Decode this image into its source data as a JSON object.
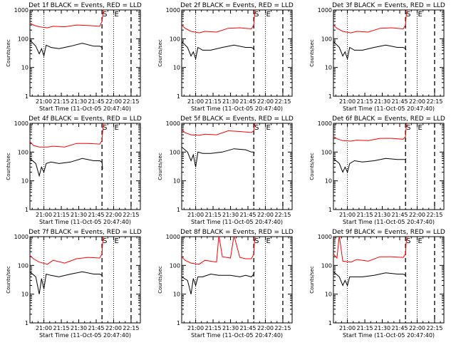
{
  "figure": {
    "xlabel": "Start Time (11-Oct-05 20:47:40)",
    "ylabel": "Counts/sec",
    "x_ticks": [
      "21:00",
      "21:15",
      "21:30",
      "21:45",
      "22:00",
      "22:15"
    ],
    "y_ticks": [
      "1",
      "10",
      "100",
      "1000"
    ],
    "markers": {
      "start": "S",
      "end": "E"
    }
  },
  "chart_data": [
    {
      "type": "line",
      "title": "Det 1f BLACK = Events, RED = LLD",
      "xlabel": "Start Time (11-Oct-05 20:47:40)",
      "ylabel": "Counts/sec",
      "yscale": "log",
      "ylim": [
        1,
        1000
      ],
      "xlim": [
        0,
        95
      ],
      "x_tick_labels": [
        "21:00",
        "21:15",
        "21:30",
        "21:45",
        "22:00",
        "22:15"
      ],
      "series": [
        {
          "name": "BLACK = Events",
          "color": "#000000",
          "x": [
            0,
            5,
            8,
            10,
            12,
            14,
            18,
            25,
            35,
            45,
            55,
            60,
            62,
            62.5
          ],
          "y": [
            90,
            55,
            30,
            45,
            25,
            60,
            50,
            45,
            55,
            70,
            55,
            55,
            50,
            45
          ]
        },
        {
          "name": "RED = LLD",
          "color": "#ff0000",
          "x": [
            0,
            3,
            8,
            15,
            20,
            30,
            40,
            50,
            60,
            62,
            62.5,
            63.5
          ],
          "y": [
            350,
            300,
            260,
            240,
            270,
            260,
            300,
            290,
            270,
            400,
            600,
            1100
          ]
        }
      ],
      "vlines": {
        "dotted": [
          12,
          72
        ],
        "dashed": [
          62,
          87
        ],
        "solid": [
          95
        ]
      },
      "markers": [
        "S",
        "E"
      ]
    },
    {
      "type": "line",
      "title": "Det 2f BLACK = Events, RED = LLD",
      "xlabel": "Start Time (11-Oct-05 20:47:40)",
      "ylabel": "Counts/sec",
      "yscale": "log",
      "ylim": [
        1,
        1000
      ],
      "xlim": [
        0,
        95
      ],
      "x_tick_labels": [
        "21:00",
        "21:15",
        "21:30",
        "21:45",
        "22:00",
        "22:15"
      ],
      "series": [
        {
          "name": "BLACK = Events",
          "color": "#000000",
          "x": [
            0,
            5,
            8,
            10,
            12,
            14,
            18,
            25,
            35,
            45,
            55,
            60,
            62,
            62.5
          ],
          "y": [
            80,
            50,
            25,
            35,
            20,
            50,
            40,
            40,
            50,
            60,
            50,
            50,
            45,
            40
          ]
        },
        {
          "name": "RED = LLD",
          "color": "#ff0000",
          "x": [
            0,
            3,
            8,
            15,
            20,
            30,
            40,
            50,
            60,
            62,
            62.5,
            63.5
          ],
          "y": [
            300,
            230,
            180,
            160,
            180,
            170,
            230,
            240,
            220,
            300,
            600,
            1100
          ]
        }
      ],
      "vlines": {
        "dotted": [
          12,
          72
        ],
        "dashed": [
          62,
          87
        ],
        "solid": [
          95
        ]
      },
      "markers": [
        "S",
        "E"
      ]
    },
    {
      "type": "line",
      "title": "Det 3f BLACK = Events, RED = LLD",
      "xlabel": "Start Time (11-Oct-05 20:47:40)",
      "ylabel": "Counts/sec",
      "yscale": "log",
      "ylim": [
        1,
        1000
      ],
      "xlim": [
        0,
        95
      ],
      "x_tick_labels": [
        "21:00",
        "21:15",
        "21:30",
        "21:45",
        "22:00",
        "22:15"
      ],
      "series": [
        {
          "name": "BLACK = Events",
          "color": "#000000",
          "x": [
            0,
            5,
            8,
            10,
            12,
            14,
            18,
            25,
            35,
            45,
            55,
            60,
            62,
            62.5
          ],
          "y": [
            80,
            50,
            25,
            35,
            20,
            50,
            40,
            40,
            50,
            60,
            50,
            50,
            45,
            40
          ]
        },
        {
          "name": "RED = LLD",
          "color": "#ff0000",
          "x": [
            0,
            3,
            8,
            15,
            20,
            30,
            40,
            50,
            60,
            62,
            62.5,
            63.5
          ],
          "y": [
            300,
            230,
            180,
            160,
            180,
            170,
            230,
            240,
            220,
            300,
            600,
            1100
          ]
        }
      ],
      "vlines": {
        "dotted": [
          12,
          72
        ],
        "dashed": [
          62,
          87
        ],
        "solid": [
          95
        ]
      },
      "markers": [
        "S",
        "E"
      ]
    },
    {
      "type": "line",
      "title": "Det 4f BLACK = Events, RED = LLD",
      "xlabel": "Start Time (11-Oct-05 20:47:40)",
      "ylabel": "Counts/sec",
      "yscale": "log",
      "ylim": [
        1,
        1000
      ],
      "xlim": [
        0,
        95
      ],
      "x_tick_labels": [
        "21:00",
        "21:15",
        "21:30",
        "21:45",
        "22:00",
        "22:15"
      ],
      "series": [
        {
          "name": "BLACK = Events",
          "color": "#000000",
          "x": [
            0,
            5,
            8,
            10,
            12,
            14,
            18,
            25,
            35,
            45,
            55,
            60,
            62,
            62.5
          ],
          "y": [
            60,
            40,
            15,
            30,
            20,
            40,
            45,
            40,
            45,
            60,
            50,
            50,
            45,
            25
          ]
        },
        {
          "name": "RED = LLD",
          "color": "#ff0000",
          "x": [
            0,
            3,
            8,
            15,
            20,
            30,
            40,
            50,
            60,
            62,
            62.5,
            63.5
          ],
          "y": [
            230,
            170,
            150,
            150,
            160,
            150,
            200,
            200,
            190,
            250,
            500,
            1100
          ]
        }
      ],
      "vlines": {
        "dotted": [
          12,
          72
        ],
        "dashed": [
          62,
          87
        ],
        "solid": [
          95
        ]
      },
      "markers": [
        "S",
        "E"
      ]
    },
    {
      "type": "line",
      "title": "Det 5f BLACK = Events, RED = LLD",
      "xlabel": "Start Time (11-Oct-05 20:47:40)",
      "ylabel": "Counts/sec",
      "yscale": "log",
      "ylim": [
        1,
        1000
      ],
      "xlim": [
        0,
        95
      ],
      "x_tick_labels": [
        "21:00",
        "21:15",
        "21:30",
        "21:45",
        "22:00",
        "22:15"
      ],
      "series": [
        {
          "name": "BLACK = Events",
          "color": "#000000",
          "x": [
            0,
            5,
            8,
            10,
            12,
            14,
            18,
            25,
            35,
            45,
            55,
            60,
            62,
            62.5
          ],
          "y": [
            150,
            100,
            50,
            80,
            30,
            100,
            90,
            90,
            100,
            130,
            120,
            100,
            100,
            90
          ]
        },
        {
          "name": "RED = LLD",
          "color": "#ff0000",
          "x": [
            0,
            3,
            8,
            15,
            20,
            30,
            40,
            50,
            60,
            62,
            62.5,
            63.5
          ],
          "y": [
            600,
            470,
            400,
            380,
            420,
            400,
            550,
            520,
            480,
            550,
            800,
            1100
          ]
        }
      ],
      "vlines": {
        "dotted": [
          12,
          72
        ],
        "dashed": [
          62,
          87
        ],
        "solid": [
          95
        ]
      },
      "markers": [
        "S",
        "E"
      ]
    },
    {
      "type": "line",
      "title": "Det 6f BLACK = Events, RED = LLD",
      "xlabel": "Start Time (11-Oct-05 20:47:40)",
      "ylabel": "Counts/sec",
      "yscale": "log",
      "ylim": [
        1,
        1000
      ],
      "xlim": [
        0,
        95
      ],
      "x_tick_labels": [
        "21:00",
        "21:15",
        "21:30",
        "21:45",
        "22:00",
        "22:15"
      ],
      "series": [
        {
          "name": "BLACK = Events",
          "color": "#000000",
          "x": [
            0,
            5,
            8,
            10,
            12,
            14,
            18,
            25,
            35,
            45,
            55,
            60,
            62,
            62.5
          ],
          "y": [
            60,
            40,
            20,
            30,
            20,
            40,
            50,
            45,
            50,
            60,
            55,
            55,
            55,
            60
          ]
        },
        {
          "name": "RED = LLD",
          "color": "#ff0000",
          "x": [
            0,
            3,
            8,
            15,
            20,
            30,
            40,
            50,
            60,
            62,
            62.5,
            63.5
          ],
          "y": [
            350,
            290,
            250,
            240,
            260,
            250,
            300,
            300,
            280,
            350,
            700,
            1100
          ]
        }
      ],
      "vlines": {
        "dotted": [
          12,
          72
        ],
        "dashed": [
          62,
          87
        ],
        "solid": [
          95
        ]
      },
      "markers": [
        "S",
        "E"
      ]
    },
    {
      "type": "line",
      "title": "Det 7f BLACK = Events, RED = LLD",
      "xlabel": "Start Time (11-Oct-05 20:47:40)",
      "ylabel": "Counts/sec",
      "yscale": "log",
      "ylim": [
        1,
        1000
      ],
      "xlim": [
        0,
        95
      ],
      "x_tick_labels": [
        "21:00",
        "21:15",
        "21:30",
        "21:45",
        "22:00",
        "22:15"
      ],
      "series": [
        {
          "name": "BLACK = Events",
          "color": "#000000",
          "x": [
            0,
            5,
            8,
            10,
            12,
            14,
            18,
            25,
            35,
            45,
            55,
            60,
            62,
            62.5
          ],
          "y": [
            60,
            40,
            10,
            35,
            15,
            50,
            45,
            40,
            50,
            60,
            50,
            50,
            45,
            40
          ]
        },
        {
          "name": "RED = LLD",
          "color": "#ff0000",
          "x": [
            0,
            3,
            8,
            15,
            20,
            30,
            40,
            50,
            60,
            62,
            62.5,
            63.5
          ],
          "y": [
            220,
            170,
            130,
            110,
            150,
            120,
            170,
            190,
            180,
            250,
            600,
            1100
          ]
        }
      ],
      "vlines": {
        "dotted": [
          12,
          72
        ],
        "dashed": [
          62,
          87
        ],
        "solid": [
          95
        ]
      },
      "markers": [
        "S",
        "E"
      ]
    },
    {
      "type": "line",
      "title": "Det 8f BLACK = Events, RED = LLD",
      "xlabel": "Start Time (11-Oct-05 20:47:40)",
      "ylabel": "Counts/sec",
      "yscale": "log",
      "ylim": [
        1,
        1000
      ],
      "xlim": [
        0,
        95
      ],
      "x_tick_labels": [
        "21:00",
        "21:15",
        "21:30",
        "21:45",
        "22:00",
        "22:15"
      ],
      "series": [
        {
          "name": "BLACK = Events",
          "color": "#000000",
          "x": [
            0,
            5,
            8,
            10,
            12,
            14,
            18,
            25,
            32,
            42,
            50,
            55,
            60,
            62,
            62.5
          ],
          "y": [
            40,
            30,
            10,
            35,
            20,
            40,
            40,
            50,
            45,
            45,
            40,
            45,
            40,
            50,
            60
          ]
        },
        {
          "name": "RED = LLD",
          "color": "#ff0000",
          "x": [
            0,
            3,
            8,
            15,
            20,
            30,
            32,
            35,
            42,
            45,
            50,
            55,
            60,
            62,
            62.5,
            63.5
          ],
          "y": [
            200,
            150,
            120,
            110,
            150,
            130,
            1100,
            200,
            180,
            1100,
            190,
            170,
            170,
            250,
            600,
            1100
          ]
        }
      ],
      "vlines": {
        "dotted": [
          12,
          72
        ],
        "dashed": [
          62,
          87
        ],
        "solid": [
          95
        ]
      },
      "markers": [
        "S",
        "E"
      ]
    },
    {
      "type": "line",
      "title": "Det 9f BLACK = Events, RED = LLD",
      "xlabel": "Start Time (11-Oct-05 20:47:40)",
      "ylabel": "Counts/sec",
      "yscale": "log",
      "ylim": [
        1,
        1000
      ],
      "xlim": [
        0,
        95
      ],
      "x_tick_labels": [
        "21:00",
        "21:15",
        "21:30",
        "21:45",
        "22:00",
        "22:15"
      ],
      "series": [
        {
          "name": "BLACK = Events",
          "color": "#000000",
          "x": [
            0,
            5,
            8,
            10,
            12,
            14,
            18,
            25,
            35,
            45,
            55,
            60,
            62,
            62.5
          ],
          "y": [
            60,
            40,
            20,
            30,
            20,
            40,
            40,
            40,
            45,
            55,
            50,
            50,
            45,
            40
          ]
        },
        {
          "name": "RED = LLD",
          "color": "#ff0000",
          "x": [
            0,
            3,
            5,
            8,
            15,
            20,
            30,
            40,
            50,
            60,
            62,
            62.5,
            63.5
          ],
          "y": [
            250,
            180,
            1100,
            140,
            130,
            160,
            140,
            200,
            200,
            190,
            250,
            600,
            1100
          ]
        }
      ],
      "vlines": {
        "dotted": [
          12,
          72
        ],
        "dashed": [
          62,
          87
        ],
        "solid": [
          95
        ]
      },
      "markers": [
        "S",
        "E"
      ]
    }
  ]
}
